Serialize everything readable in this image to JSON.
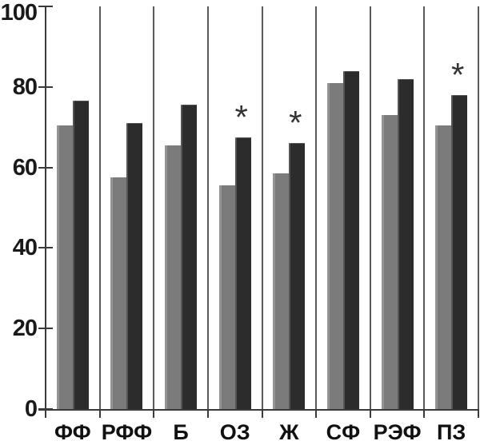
{
  "chart_data": {
    "type": "bar",
    "title": "",
    "xlabel": "",
    "ylabel": "",
    "categories": [
      "ФФ",
      "РФФ",
      "Б",
      "ОЗ",
      "Ж",
      "СФ",
      "РЭФ",
      "ПЗ"
    ],
    "series": [
      {
        "name": "series-1-light-gray",
        "color": "#7b7b7b",
        "edge_color": "#949494",
        "values": [
          70.5,
          57.5,
          65.5,
          55.5,
          58.5,
          81,
          73,
          70.5
        ]
      },
      {
        "name": "series-2-dark-gray",
        "color": "#2c2c2c",
        "edge_color": "#555555",
        "values": [
          76.5,
          71,
          75.5,
          67.5,
          66,
          84,
          82,
          78
        ]
      }
    ],
    "y_ticks": [
      0,
      20,
      40,
      60,
      80,
      100
    ],
    "ylim": [
      0,
      100
    ],
    "legend_position": "none",
    "grid": "vertical dividers between category slots",
    "significance_marker": {
      "symbol": "*",
      "categories": [
        "ОЗ",
        "Ж",
        "ПЗ"
      ],
      "applies_to_series": "series-2-dark-gray"
    },
    "colors": {
      "axis": "#3a3a3a",
      "divider": "#5a5a5a",
      "text": "#1a1a1a",
      "background": "#ffffff"
    }
  }
}
